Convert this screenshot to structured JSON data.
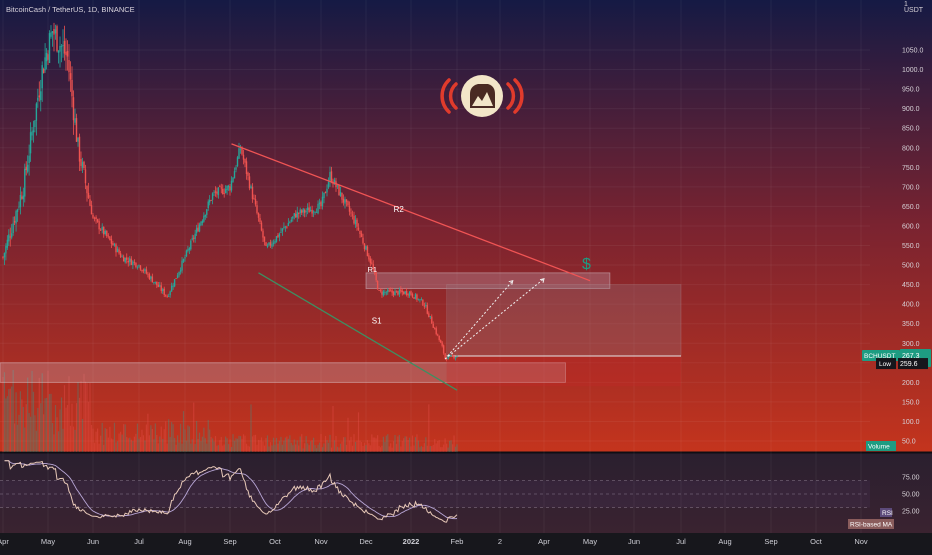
{
  "header": {
    "symbol_line": "BitcoinCash / TetherUS, 1D, BINANCE"
  },
  "price_axis": {
    "unit": "USDT",
    "top_tick": "1",
    "ticks": [
      "1050.0",
      "1000.0",
      "950.0",
      "900.0",
      "850.0",
      "800.0",
      "750.0",
      "700.0",
      "650.0",
      "600.0",
      "550.0",
      "500.0",
      "450.0",
      "400.0",
      "350.0",
      "300.0",
      "250.0",
      "200.0",
      "150.0",
      "100.0",
      "50.0"
    ]
  },
  "rsi_axis": {
    "ticks": [
      "75.00",
      "50.00",
      "25.00"
    ]
  },
  "time_axis": {
    "labels": [
      "Apr",
      "May",
      "Jun",
      "Jul",
      "Aug",
      "Sep",
      "Oct",
      "Nov",
      "Dec",
      "2022",
      "Feb",
      "2",
      "Apr",
      "May",
      "Jun",
      "Jul",
      "Aug",
      "Sep",
      "Oct",
      "Nov"
    ]
  },
  "badges": {
    "symbol_tag": "BCHUSDT",
    "last_price": "267.3",
    "low_label": "Low",
    "low_value": "259.6",
    "volume_label": "Volume",
    "rsi_label": "RSI",
    "rsi_ma_label": "RSI-based MA"
  },
  "annotations": {
    "r2": "R2",
    "r1": "R1",
    "s1": "S1",
    "dollar": "$"
  },
  "colors": {
    "bg_top": "#151a44",
    "bg_mid": "#7a2330",
    "bg_bottom": "#c4341d",
    "up": "#26a69a",
    "down": "#ef5350",
    "resistance_line": "#f05454",
    "support_line": "#3d8f62",
    "rsi_line": "#e8c9b8",
    "rsi_ma": "#b8a6d6",
    "accent_teal": "#1e9c82",
    "logo_ring": "#e03b2c"
  },
  "chart_data": {
    "type": "candlestick",
    "symbol": "BCHUSDT",
    "interval": "1D",
    "exchange": "BINANCE",
    "y_range": [
      0,
      1090
    ],
    "price_path": [
      {
        "date": "2021-04-01",
        "price": 520
      },
      {
        "date": "2021-04-15",
        "price": 700
      },
      {
        "date": "2021-04-28",
        "price": 1000
      },
      {
        "date": "2021-05-05",
        "price": 1100
      },
      {
        "date": "2021-05-15",
        "price": 1030
      },
      {
        "date": "2021-05-22",
        "price": 800
      },
      {
        "date": "2021-06-01",
        "price": 620
      },
      {
        "date": "2021-06-20",
        "price": 520
      },
      {
        "date": "2021-07-01",
        "price": 500
      },
      {
        "date": "2021-07-20",
        "price": 420
      },
      {
        "date": "2021-08-01",
        "price": 520
      },
      {
        "date": "2021-08-20",
        "price": 680
      },
      {
        "date": "2021-09-01",
        "price": 700
      },
      {
        "date": "2021-09-08",
        "price": 800
      },
      {
        "date": "2021-09-25",
        "price": 540
      },
      {
        "date": "2021-10-15",
        "price": 630
      },
      {
        "date": "2021-11-01",
        "price": 650
      },
      {
        "date": "2021-11-07",
        "price": 730
      },
      {
        "date": "2021-11-25",
        "price": 600
      },
      {
        "date": "2021-12-05",
        "price": 500
      },
      {
        "date": "2021-12-10",
        "price": 430
      },
      {
        "date": "2021-12-31",
        "price": 430
      },
      {
        "date": "2022-01-10",
        "price": 400
      },
      {
        "date": "2022-01-22",
        "price": 290
      },
      {
        "date": "2022-01-24",
        "price": 262
      },
      {
        "date": "2022-02-01",
        "price": 267
      }
    ],
    "last_price": 267.3,
    "low_price": 259.6,
    "trend_lines": [
      {
        "name": "R2",
        "from": {
          "date": "2021-09-02",
          "price": 810
        },
        "to": {
          "date": "2022-05-01",
          "price": 460
        }
      },
      {
        "name": "S1",
        "from": {
          "date": "2021-09-20",
          "price": 480
        },
        "to": {
          "date": "2022-02-01",
          "price": 180
        }
      }
    ],
    "horizontal_zones": [
      {
        "name": "R1",
        "from_price": 440,
        "to_price": 480
      },
      {
        "name": "support",
        "from_price": 200,
        "to_price": 250
      }
    ],
    "target_box": {
      "price_from": 190,
      "price_to": 450
    },
    "rsi": {
      "range": [
        0,
        100
      ],
      "levels": [
        70,
        50,
        30
      ],
      "last": 28
    }
  }
}
